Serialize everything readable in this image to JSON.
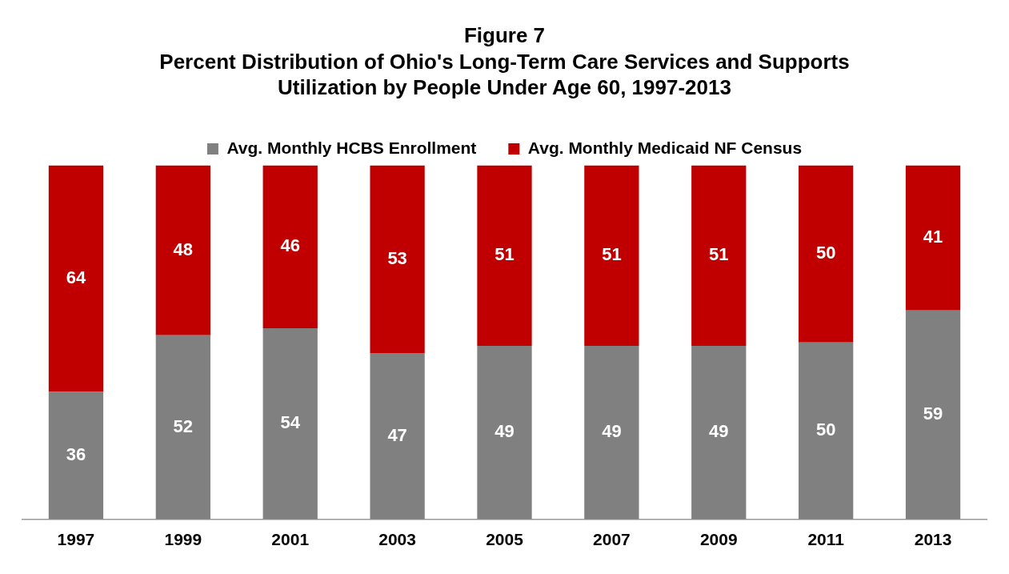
{
  "chart_data": {
    "type": "bar",
    "title": "Figure 7\nPercent Distribution of Ohio's Long-Term Care Services and Supports\nUtilization by People Under Age 60, 1997-2013",
    "categories": [
      "1997",
      "1999",
      "2001",
      "2003",
      "2005",
      "2007",
      "2009",
      "2011",
      "2013"
    ],
    "stacked": true,
    "data_labels": true,
    "legend": "top",
    "grid": false,
    "series": [
      {
        "name": "Avg. Monthly HCBS Enrollment",
        "color": "#808080",
        "values": [
          36,
          52,
          54,
          47,
          49,
          49,
          49,
          50,
          59
        ]
      },
      {
        "name": "Avg. Monthly Medicaid NF Census",
        "color": "#c00000",
        "values": [
          64,
          48,
          46,
          53,
          51,
          51,
          51,
          50,
          41
        ]
      }
    ]
  }
}
